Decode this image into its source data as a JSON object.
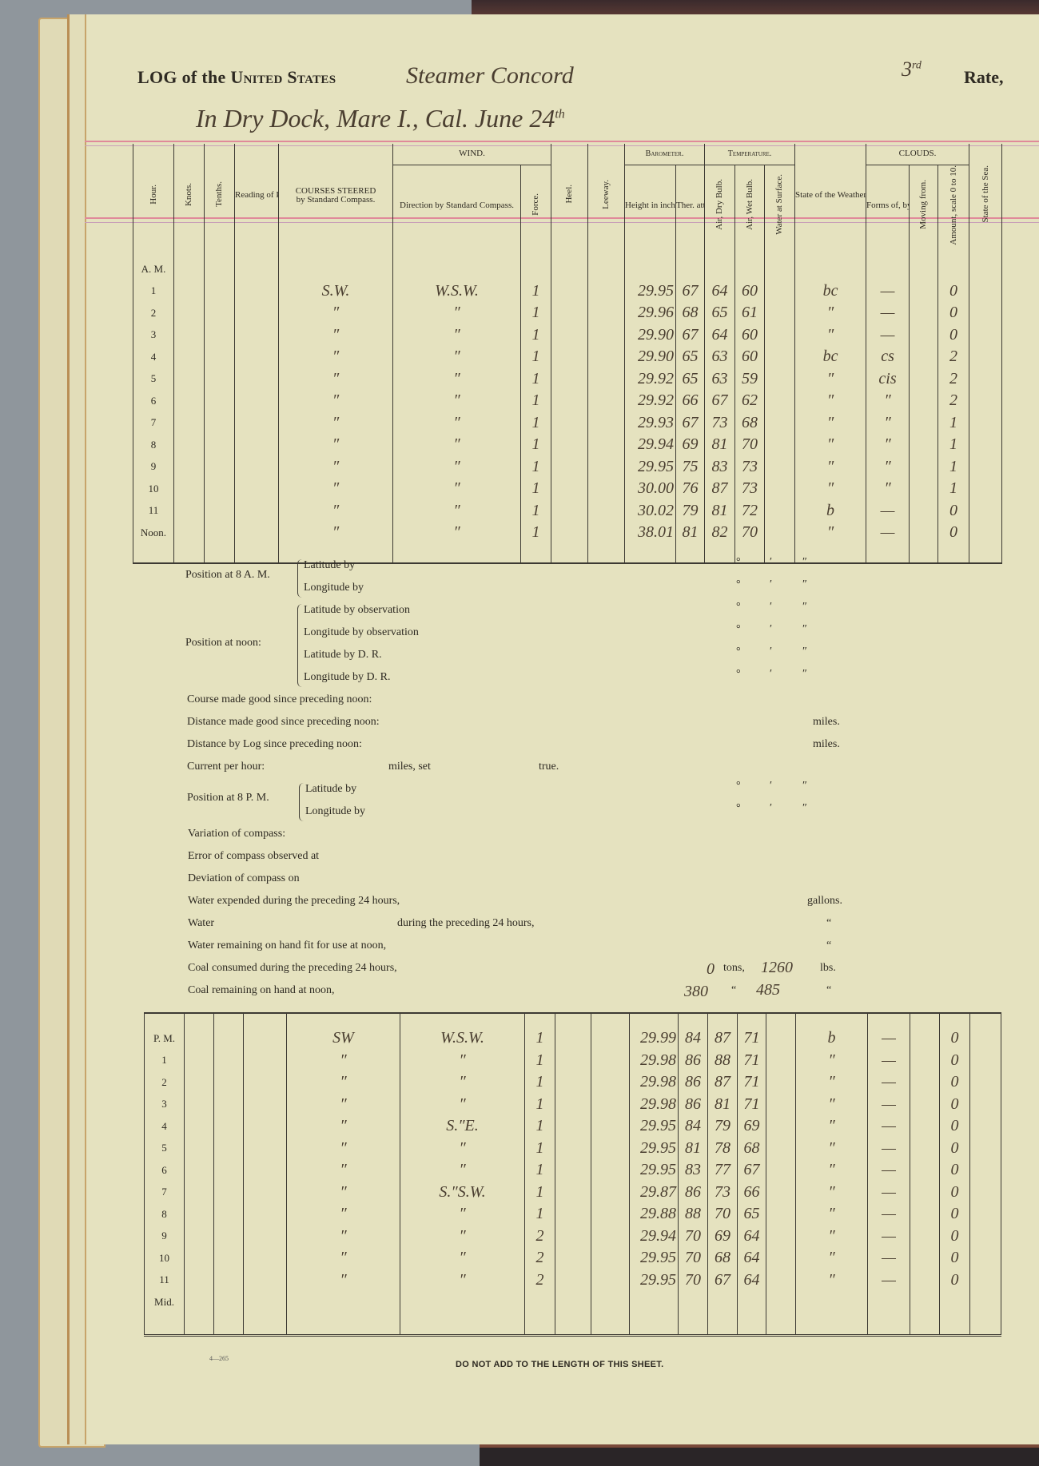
{
  "header": {
    "title_prefix": "LOG of the",
    "title_caps": "United States",
    "vessel_handwritten": "Steamer Concord",
    "rate_number": "3",
    "rate_suffix": "rd",
    "rate_label": "Rate,",
    "location_handwritten": "In Dry Dock, Mare I., Cal.  June 24",
    "location_suffix": "th"
  },
  "columns": {
    "hour": "Hour.",
    "knots": "Knots.",
    "tenths": "Tenths.",
    "patent_log": "Reading of Patent Log.",
    "courses": "COURSES STEERED",
    "courses_sub": "by Standard Compass.",
    "wind": "WIND.",
    "direction": "Direction by Standard Compass.",
    "force": "Force.",
    "heel": "Heel.",
    "leeway": "Leeway.",
    "barometer": "Barometer.",
    "height": "Height in inches.",
    "ther": "Ther. att'd.",
    "temperature": "Temperature.",
    "air_dry": "Air, Dry Bulb.",
    "air_wet": "Air, Wet Bulb.",
    "water_surface": "Water at Surface.",
    "weather": "State of the Weather, by symbols.",
    "clouds": "CLOUDS.",
    "forms": "Forms of, by symbols.",
    "moving": "Moving from.",
    "amount": "Amount, scale 0 to 10.",
    "sea": "State of the Sea."
  },
  "am_rows": [
    {
      "hour": "A. M.",
      "course": "",
      "direction": "",
      "force": "",
      "height": "",
      "ther": "",
      "dry": "",
      "wet": "",
      "weather": "",
      "forms": "",
      "amount": ""
    },
    {
      "hour": "1",
      "course": "S.W.",
      "direction": "W.S.W.",
      "force": "1",
      "height": "29.95",
      "ther": "67",
      "dry": "64",
      "wet": "60",
      "weather": "bc",
      "forms": "—",
      "amount": "0"
    },
    {
      "hour": "2",
      "course": "″",
      "direction": "″",
      "force": "1",
      "height": "29.96",
      "ther": "68",
      "dry": "65",
      "wet": "61",
      "weather": "″",
      "forms": "—",
      "amount": "0"
    },
    {
      "hour": "3",
      "course": "″",
      "direction": "″",
      "force": "1",
      "height": "29.90",
      "ther": "67",
      "dry": "64",
      "wet": "60",
      "weather": "″",
      "forms": "—",
      "amount": "0"
    },
    {
      "hour": "4",
      "course": "″",
      "direction": "″",
      "force": "1",
      "height": "29.90",
      "ther": "65",
      "dry": "63",
      "wet": "60",
      "weather": "bc",
      "forms": "cs",
      "amount": "2"
    },
    {
      "hour": "5",
      "course": "″",
      "direction": "″",
      "force": "1",
      "height": "29.92",
      "ther": "65",
      "dry": "63",
      "wet": "59",
      "weather": "″",
      "forms": "cis",
      "amount": "2"
    },
    {
      "hour": "6",
      "course": "″",
      "direction": "″",
      "force": "1",
      "height": "29.92",
      "ther": "66",
      "dry": "67",
      "wet": "62",
      "weather": "″",
      "forms": "″",
      "amount": "2"
    },
    {
      "hour": "7",
      "course": "″",
      "direction": "″",
      "force": "1",
      "height": "29.93",
      "ther": "67",
      "dry": "73",
      "wet": "68",
      "weather": "″",
      "forms": "″",
      "amount": "1"
    },
    {
      "hour": "8",
      "course": "″",
      "direction": "″",
      "force": "1",
      "height": "29.94",
      "ther": "69",
      "dry": "81",
      "wet": "70",
      "weather": "″",
      "forms": "″",
      "amount": "1"
    },
    {
      "hour": "9",
      "course": "″",
      "direction": "″",
      "force": "1",
      "height": "29.95",
      "ther": "75",
      "dry": "83",
      "wet": "73",
      "weather": "″",
      "forms": "″",
      "amount": "1"
    },
    {
      "hour": "10",
      "course": "″",
      "direction": "″",
      "force": "1",
      "height": "30.00",
      "ther": "76",
      "dry": "87",
      "wet": "73",
      "weather": "″",
      "forms": "″",
      "amount": "1"
    },
    {
      "hour": "11",
      "course": "″",
      "direction": "″",
      "force": "1",
      "height": "30.02",
      "ther": "79",
      "dry": "81",
      "wet": "72",
      "weather": "b",
      "forms": "—",
      "amount": "0"
    },
    {
      "hour": "Noon.",
      "course": "″",
      "direction": "″",
      "force": "1",
      "height": "38.01",
      "ther": "81",
      "dry": "82",
      "wet": "70",
      "weather": "″",
      "forms": "—",
      "amount": "0"
    }
  ],
  "positions": {
    "pos_8am": "Position at 8 A. M.",
    "lat_by": "Latitude by",
    "long_by": "Longitude by",
    "pos_noon": "Position at noon:",
    "lat_obs": "Latitude by observation",
    "long_obs": "Longitude by observation",
    "lat_dr": "Latitude by D. R.",
    "long_dr": "Longitude by D. R.",
    "deg": "°",
    "min": "′",
    "sec": "″",
    "course_good": "Course made good since preceding noon:",
    "distance_good": "Distance made good since preceding noon:",
    "distance_log": "Distance by Log since preceding noon:",
    "miles": "miles.",
    "current": "Current per hour:",
    "miles_set": "miles, set",
    "true": "true.",
    "pos_8pm": "Position at 8 P. M.",
    "variation": "Variation of compass:",
    "error": "Error of compass observed at",
    "deviation": "Deviation of compass on",
    "water_expended": "Water expended during the preceding 24 hours,",
    "gallons": "gallons.",
    "water": "Water",
    "water_during": "during the preceding 24 hours,",
    "ditto": "“",
    "water_remaining": "Water remaining on hand fit for use at noon,",
    "coal_consumed": "Coal consumed during the preceding 24 hours,",
    "coal_consumed_tons": "0",
    "tons": "tons,",
    "coal_consumed_lbs": "1260",
    "lbs": "lbs.",
    "coal_remaining": "Coal remaining on hand at noon,",
    "coal_remaining_tons": "380",
    "coal_remaining_lbs": "485"
  },
  "pm_rows": [
    {
      "hour": "P. M.",
      "course": "SW",
      "direction": "W.S.W.",
      "force": "1",
      "height": "29.99",
      "ther": "84",
      "dry": "87",
      "wet": "71",
      "weather": "b",
      "forms": "—",
      "amount": "0"
    },
    {
      "hour": "1",
      "course": "″",
      "direction": "″",
      "force": "1",
      "height": "29.98",
      "ther": "86",
      "dry": "88",
      "wet": "71",
      "weather": "″",
      "forms": "—",
      "amount": "0"
    },
    {
      "hour": "2",
      "course": "″",
      "direction": "″",
      "force": "1",
      "height": "29.98",
      "ther": "86",
      "dry": "87",
      "wet": "71",
      "weather": "″",
      "forms": "—",
      "amount": "0"
    },
    {
      "hour": "3",
      "course": "″",
      "direction": "″",
      "force": "1",
      "height": "29.98",
      "ther": "86",
      "dry": "81",
      "wet": "71",
      "weather": "″",
      "forms": "—",
      "amount": "0"
    },
    {
      "hour": "4",
      "course": "″",
      "direction": "S.″E.",
      "force": "1",
      "height": "29.95",
      "ther": "84",
      "dry": "79",
      "wet": "69",
      "weather": "″",
      "forms": "—",
      "amount": "0"
    },
    {
      "hour": "5",
      "course": "″",
      "direction": "″",
      "force": "1",
      "height": "29.95",
      "ther": "81",
      "dry": "78",
      "wet": "68",
      "weather": "″",
      "forms": "—",
      "amount": "0"
    },
    {
      "hour": "6",
      "course": "″",
      "direction": "″",
      "force": "1",
      "height": "29.95",
      "ther": "83",
      "dry": "77",
      "wet": "67",
      "weather": "″",
      "forms": "—",
      "amount": "0"
    },
    {
      "hour": "7",
      "course": "″",
      "direction": "S.″S.W.",
      "force": "1",
      "height": "29.87",
      "ther": "86",
      "dry": "73",
      "wet": "66",
      "weather": "″",
      "forms": "—",
      "amount": "0"
    },
    {
      "hour": "8",
      "course": "″",
      "direction": "″",
      "force": "1",
      "height": "29.88",
      "ther": "88",
      "dry": "70",
      "wet": "65",
      "weather": "″",
      "forms": "—",
      "amount": "0"
    },
    {
      "hour": "9",
      "course": "″",
      "direction": "″",
      "force": "2",
      "height": "29.94",
      "ther": "70",
      "dry": "69",
      "wet": "64",
      "weather": "″",
      "forms": "—",
      "amount": "0"
    },
    {
      "hour": "10",
      "course": "″",
      "direction": "″",
      "force": "2",
      "height": "29.95",
      "ther": "70",
      "dry": "68",
      "wet": "64",
      "weather": "″",
      "forms": "—",
      "amount": "0"
    },
    {
      "hour": "11",
      "course": "″",
      "direction": "″",
      "force": "2",
      "height": "29.95",
      "ther": "70",
      "dry": "67",
      "wet": "64",
      "weather": "″",
      "forms": "—",
      "amount": "0"
    },
    {
      "hour": "Mid.",
      "course": "",
      "direction": "",
      "force": "",
      "height": "",
      "ther": "",
      "dry": "",
      "wet": "",
      "weather": "",
      "forms": "",
      "amount": ""
    }
  ],
  "footer": {
    "form_number": "4—265",
    "note": "DO NOT ADD TO THE LENGTH OF THIS SHEET."
  }
}
